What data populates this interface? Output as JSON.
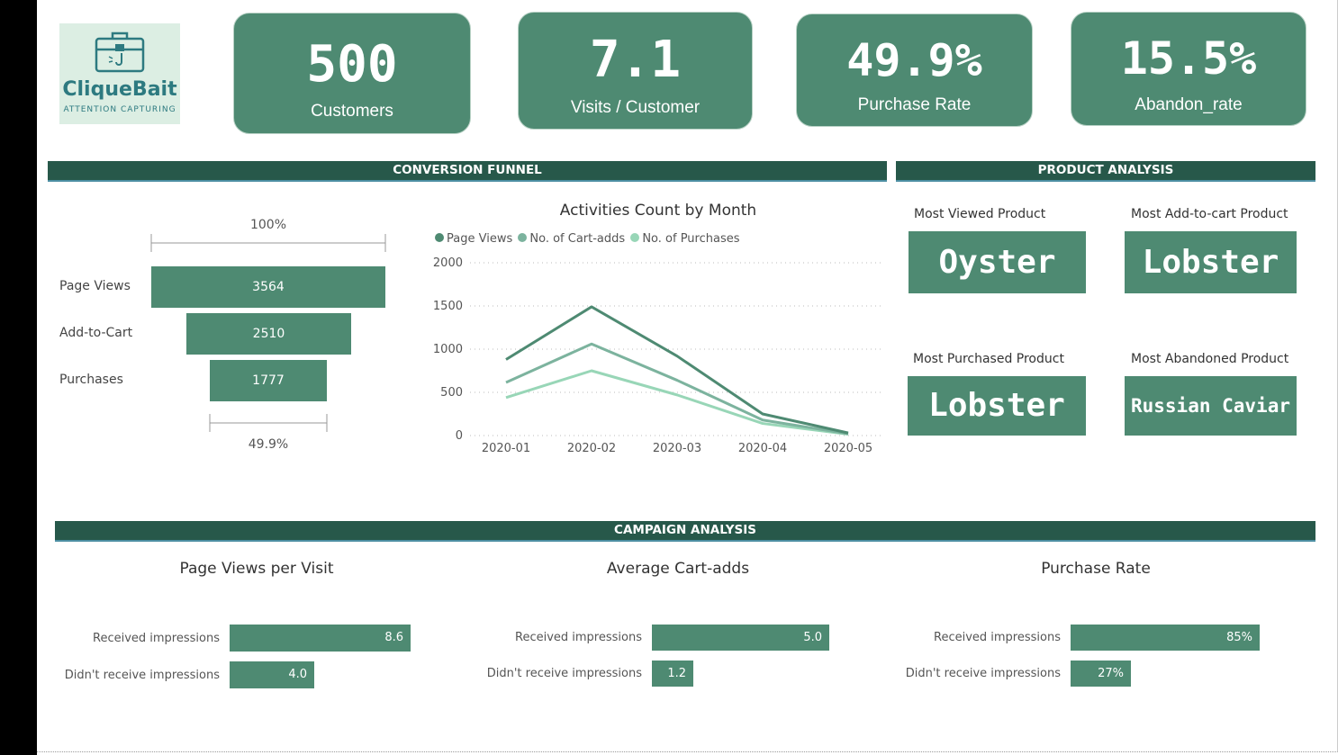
{
  "logo": {
    "name": "CliqueBait",
    "tagline": "ATTENTION CAPTURING"
  },
  "kpis": [
    {
      "value": "500",
      "label": "Customers"
    },
    {
      "value": "7.1",
      "label": "Visits / Customer"
    },
    {
      "value": "49.9%",
      "label": "Purchase Rate"
    },
    {
      "value": "15.5%",
      "label": "Abandon_rate"
    }
  ],
  "sections": {
    "funnel": "CONVERSION FUNNEL",
    "product": "PRODUCT ANALYSIS",
    "campaign": "CAMPAIGN ANALYSIS"
  },
  "funnel": {
    "top_pct": "100%",
    "bottom_pct": "49.9%",
    "stages": [
      {
        "label": "Page Views",
        "value": "3564"
      },
      {
        "label": "Add-to-Cart",
        "value": "2510"
      },
      {
        "label": "Purchases",
        "value": "1777"
      }
    ]
  },
  "product": {
    "most_viewed": {
      "label": "Most Viewed Product",
      "value": "Oyster"
    },
    "most_added": {
      "label": "Most Add-to-cart Product",
      "value": "Lobster"
    },
    "most_purchased": {
      "label": "Most Purchased Product",
      "value": "Lobster"
    },
    "most_abandoned": {
      "label": "Most Abandoned Product",
      "value": "Russian Caviar"
    }
  },
  "campaign": {
    "page_views": {
      "title": "Page Views per Visit",
      "rows": [
        {
          "label": "Received impressions",
          "value": "8.6"
        },
        {
          "label": "Didn't receive impressions",
          "value": "4.0"
        }
      ]
    },
    "cart_adds": {
      "title": "Average Cart-adds",
      "rows": [
        {
          "label": "Received impressions",
          "value": "5.0"
        },
        {
          "label": "Didn't receive impressions",
          "value": "1.2"
        }
      ]
    },
    "purchase_rate": {
      "title": "Purchase Rate",
      "rows": [
        {
          "label": "Received impressions",
          "value": "85%"
        },
        {
          "label": "Didn't receive impressions",
          "value": "27%"
        }
      ]
    }
  },
  "colors": {
    "primary": "#4e8a72",
    "header": "#27584a",
    "series": [
      "#4e8a72",
      "#7cb39e",
      "#98d6b7"
    ]
  },
  "chart_data": [
    {
      "type": "bar",
      "title": "",
      "categories": [
        "Page Views",
        "Add-to-Cart",
        "Purchases"
      ],
      "values": [
        3564,
        2510,
        1777
      ]
    },
    {
      "type": "line",
      "title": "Activities Count by Month",
      "x": [
        "2020-01",
        "2020-02",
        "2020-03",
        "2020-04",
        "2020-05"
      ],
      "ylim": [
        0,
        2000
      ],
      "yticks": [
        "0",
        "500",
        "1000",
        "1500",
        "2000"
      ],
      "grid": true,
      "legend": "top-left",
      "series": [
        {
          "name": "Page Views",
          "values": [
            880,
            1490,
            920,
            250,
            30
          ]
        },
        {
          "name": "No. of Cart-adds",
          "values": [
            615,
            1060,
            640,
            180,
            20
          ]
        },
        {
          "name": "No. of Purchases",
          "values": [
            440,
            750,
            470,
            140,
            15
          ]
        }
      ]
    },
    {
      "type": "bar",
      "title": "Page Views per Visit",
      "categories": [
        "Received impressions",
        "Didn't receive impressions"
      ],
      "values": [
        8.6,
        4.0
      ]
    },
    {
      "type": "bar",
      "title": "Average Cart-adds",
      "categories": [
        "Received impressions",
        "Didn't receive impressions"
      ],
      "values": [
        5.0,
        1.2
      ]
    },
    {
      "type": "bar",
      "title": "Purchase Rate",
      "categories": [
        "Received impressions",
        "Didn't receive impressions"
      ],
      "values": [
        85,
        27
      ]
    }
  ]
}
